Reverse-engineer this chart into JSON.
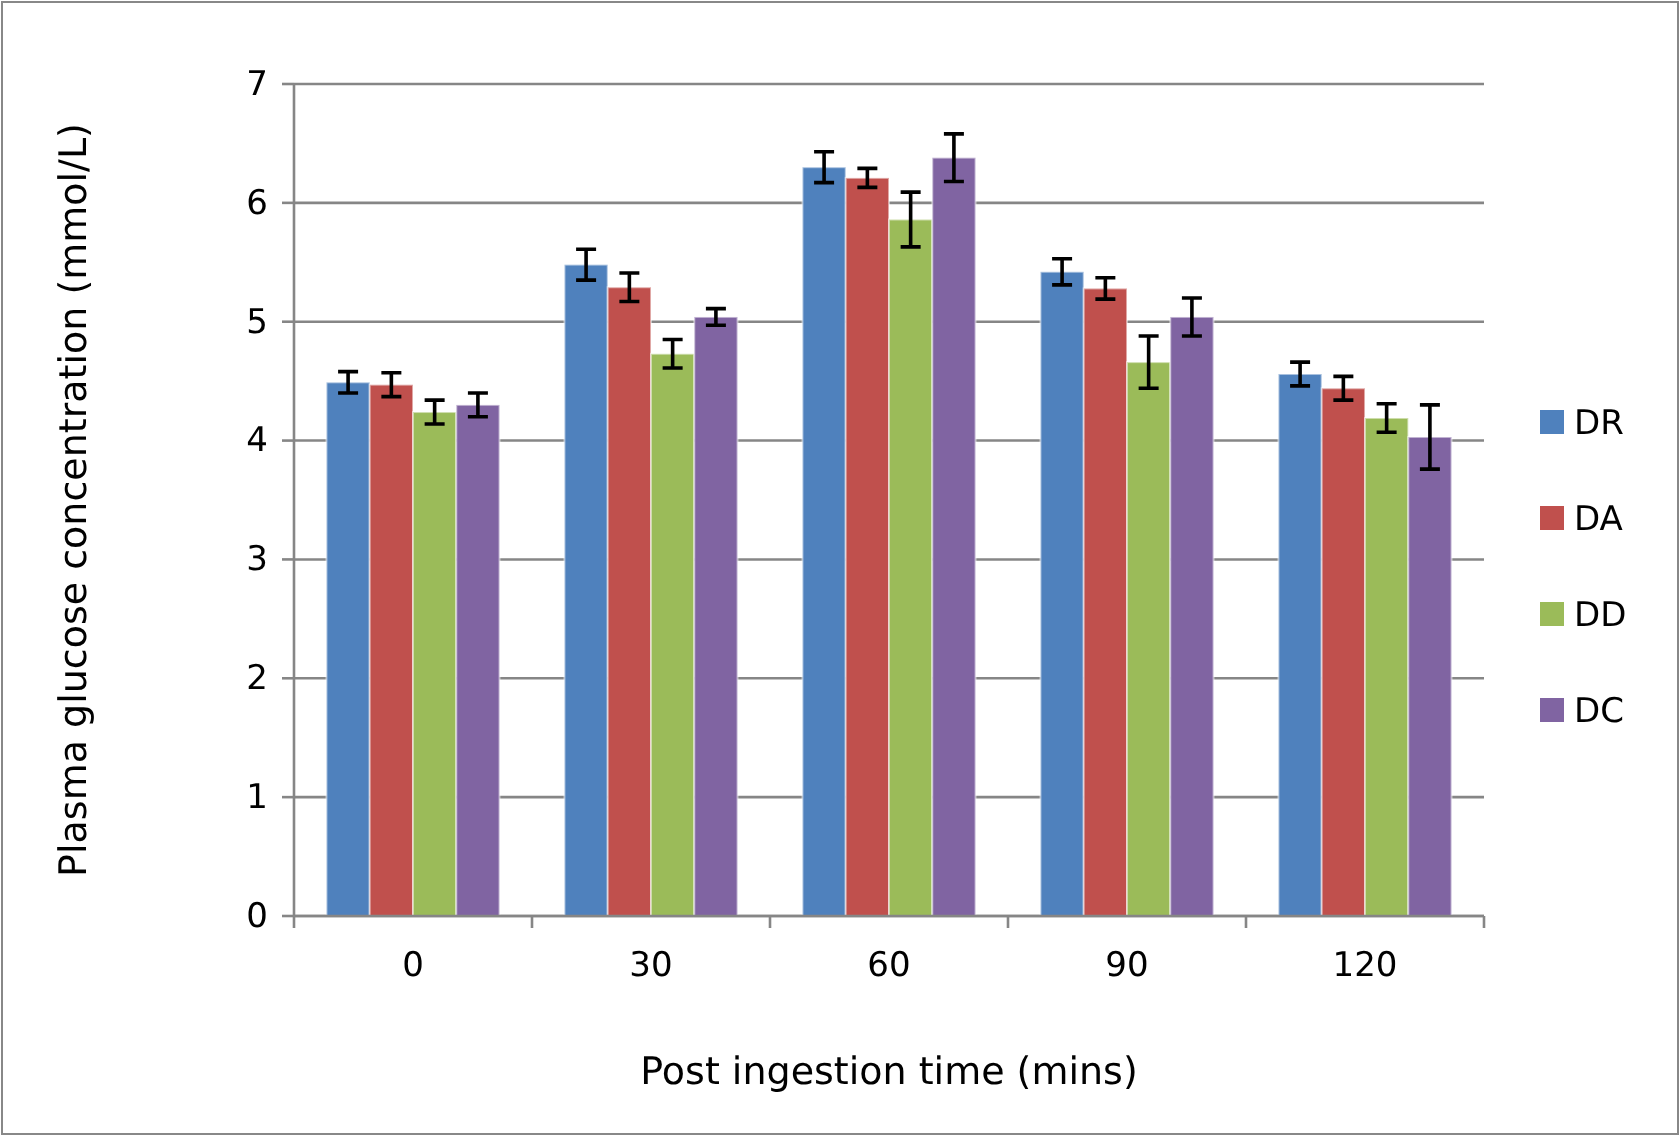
{
  "chart_data": {
    "type": "bar",
    "xlabel": "Post ingestion time (mins)",
    "ylabel": "Plasma glucose concentration (mmol/L)",
    "categories": [
      "0",
      "30",
      "60",
      "90",
      "120"
    ],
    "series": [
      {
        "name": "DR",
        "color": "#4f81bd",
        "values": [
          4.49,
          5.48,
          6.3,
          5.42,
          4.56
        ],
        "errors": [
          0.09,
          0.13,
          0.13,
          0.11,
          0.1
        ]
      },
      {
        "name": "DA",
        "color": "#c0504d",
        "values": [
          4.47,
          5.29,
          6.21,
          5.28,
          4.44
        ],
        "errors": [
          0.1,
          0.12,
          0.08,
          0.09,
          0.1
        ]
      },
      {
        "name": "DD",
        "color": "#9bbb59",
        "values": [
          4.24,
          4.73,
          5.86,
          4.66,
          4.19
        ],
        "errors": [
          0.1,
          0.12,
          0.23,
          0.22,
          0.12
        ]
      },
      {
        "name": "DC",
        "color": "#8064a2",
        "values": [
          4.3,
          5.04,
          6.38,
          5.04,
          4.03
        ],
        "errors": [
          0.1,
          0.07,
          0.2,
          0.16,
          0.27
        ]
      }
    ],
    "ylim": [
      0,
      7
    ],
    "yticks": [
      0,
      1,
      2,
      3,
      4,
      5,
      6,
      7
    ],
    "grid": "y",
    "legend": "right"
  }
}
